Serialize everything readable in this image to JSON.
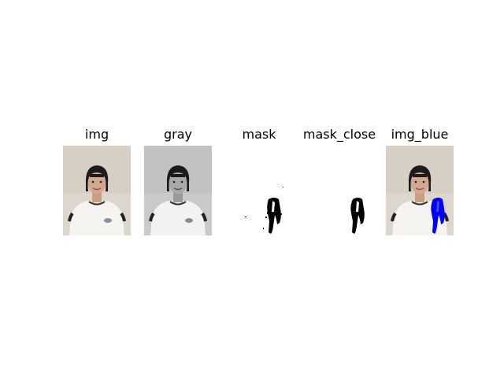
{
  "figure": {
    "panels": [
      {
        "title": "img",
        "kind": "color_photo"
      },
      {
        "title": "gray",
        "kind": "grayscale_photo"
      },
      {
        "title": "mask",
        "kind": "binary_mask"
      },
      {
        "title": "mask_close",
        "kind": "binary_mask_closed"
      },
      {
        "title": "img_blue",
        "kind": "color_photo_with_blue_overlay"
      }
    ],
    "colors": {
      "background": "#ffffff",
      "photo_wall": "#d9d2c8",
      "shirt": "#f7f5f3",
      "overlay": "#0000ff",
      "mask_ink": "#000000"
    }
  }
}
